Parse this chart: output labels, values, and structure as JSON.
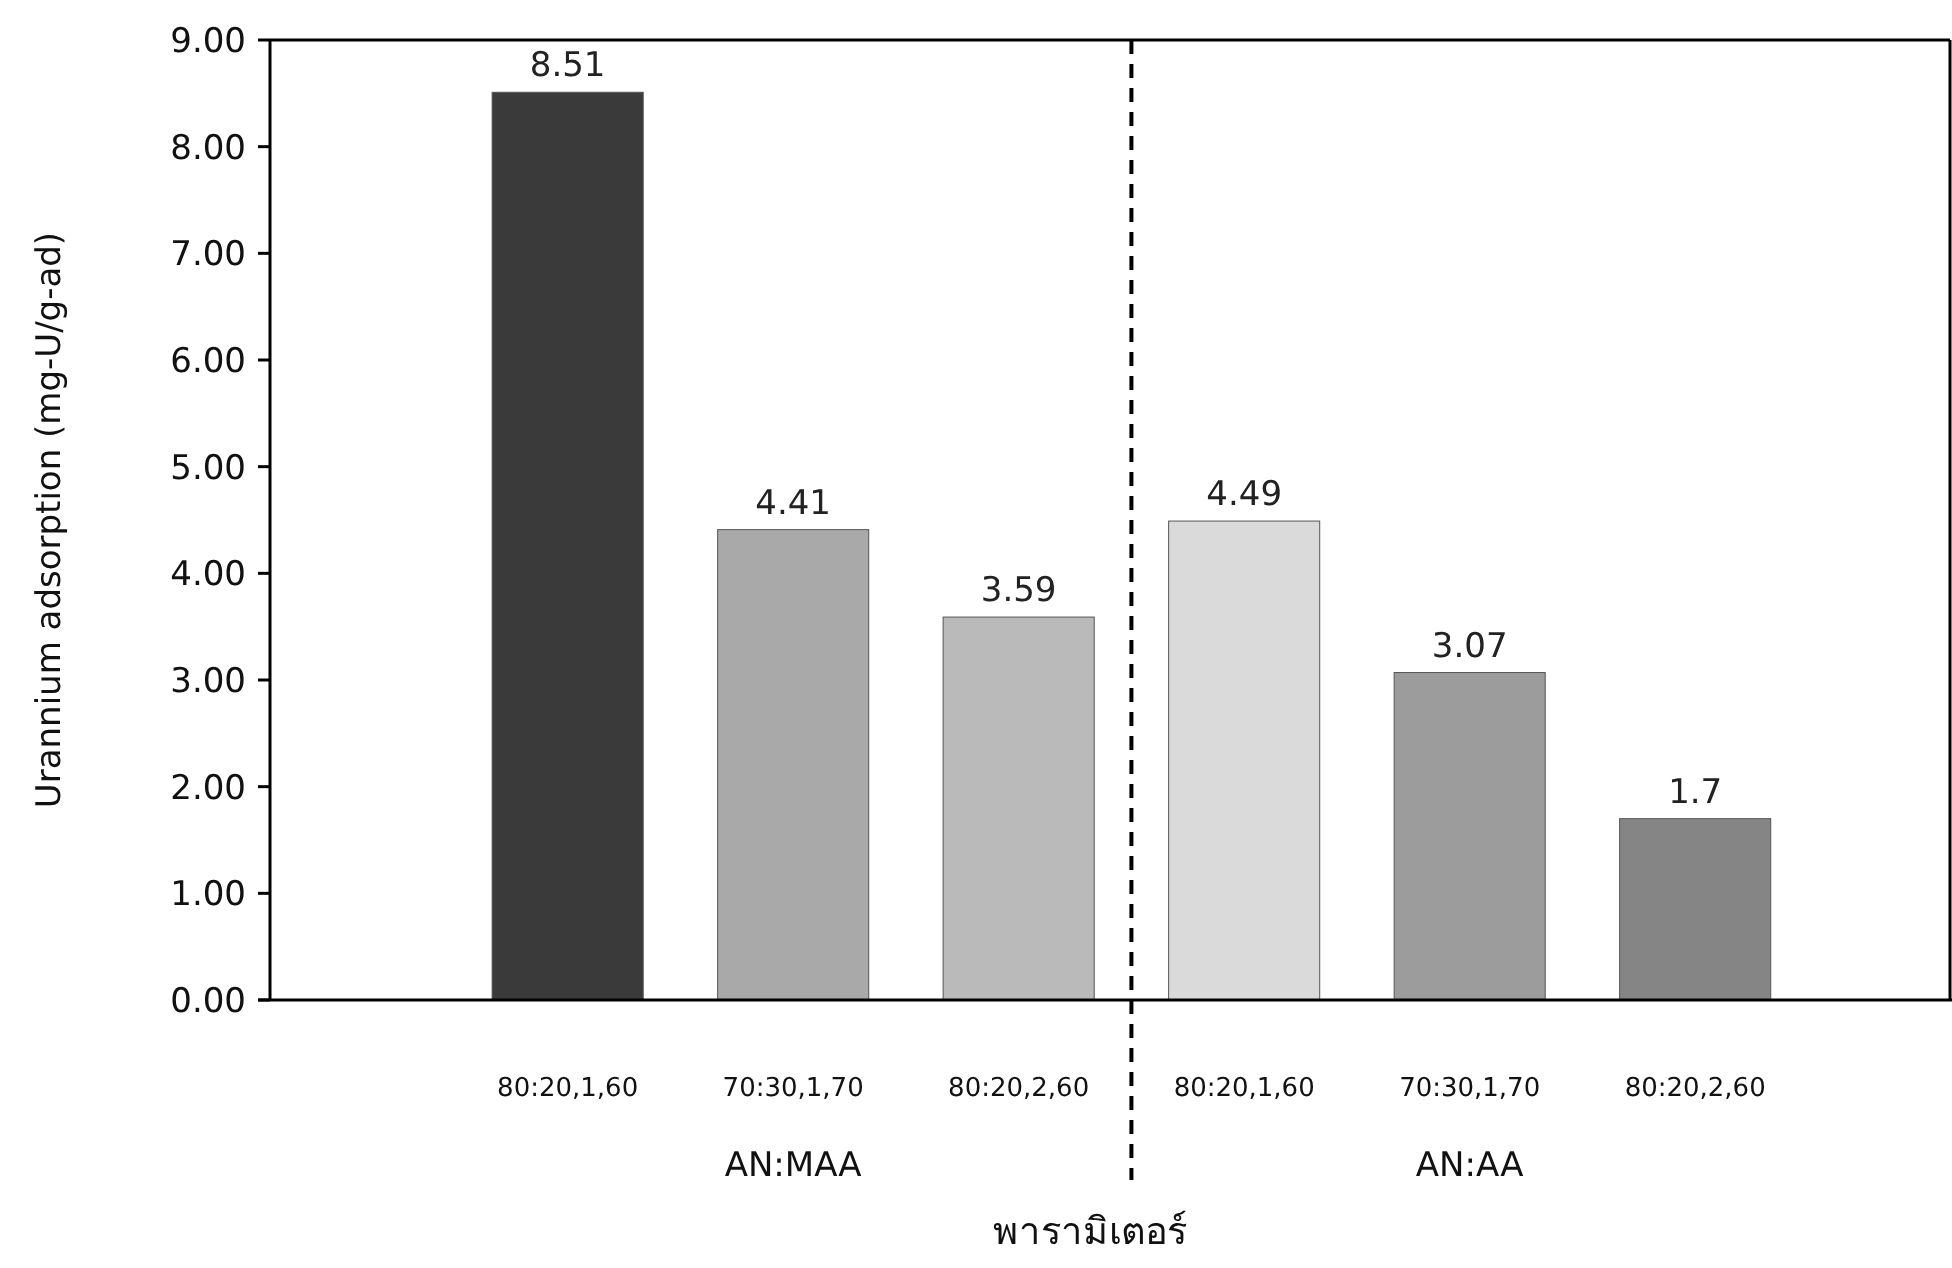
{
  "chart_data": {
    "type": "bar",
    "xlabel": "พารามิเตอร์",
    "ylabel": "Urannium  adsorption (mg-U/g-ad)",
    "categories": [
      "80:20,1,60",
      "70:30,1,70",
      "80:20,2,60",
      "80:20,1,60",
      "70:30,1,70",
      "80:20,2,60"
    ],
    "values": [
      8.51,
      4.41,
      3.59,
      4.49,
      3.07,
      1.7
    ],
    "colors": [
      "#3a3a3a",
      "#a9a9a9",
      "#bababa",
      "#dadada",
      "#9c9c9c",
      "#858585"
    ],
    "value_labels": [
      "8.51",
      "4.41",
      "3.59",
      "4.49",
      "3.07",
      "1.7"
    ],
    "ylim": [
      0,
      9
    ],
    "yticks": [
      {
        "value": 0,
        "label": "0.00"
      },
      {
        "value": 1,
        "label": "1.00"
      },
      {
        "value": 2,
        "label": "2.00"
      },
      {
        "value": 3,
        "label": "3.00"
      },
      {
        "value": 4,
        "label": "4.00"
      },
      {
        "value": 5,
        "label": "5.00"
      },
      {
        "value": 6,
        "label": "6.00"
      },
      {
        "value": 7,
        "label": "7.00"
      },
      {
        "value": 8,
        "label": "8.00"
      },
      {
        "value": 9,
        "label": "9.00"
      }
    ],
    "annotations": [
      "AN:MAA",
      "AN:AA"
    ]
  }
}
